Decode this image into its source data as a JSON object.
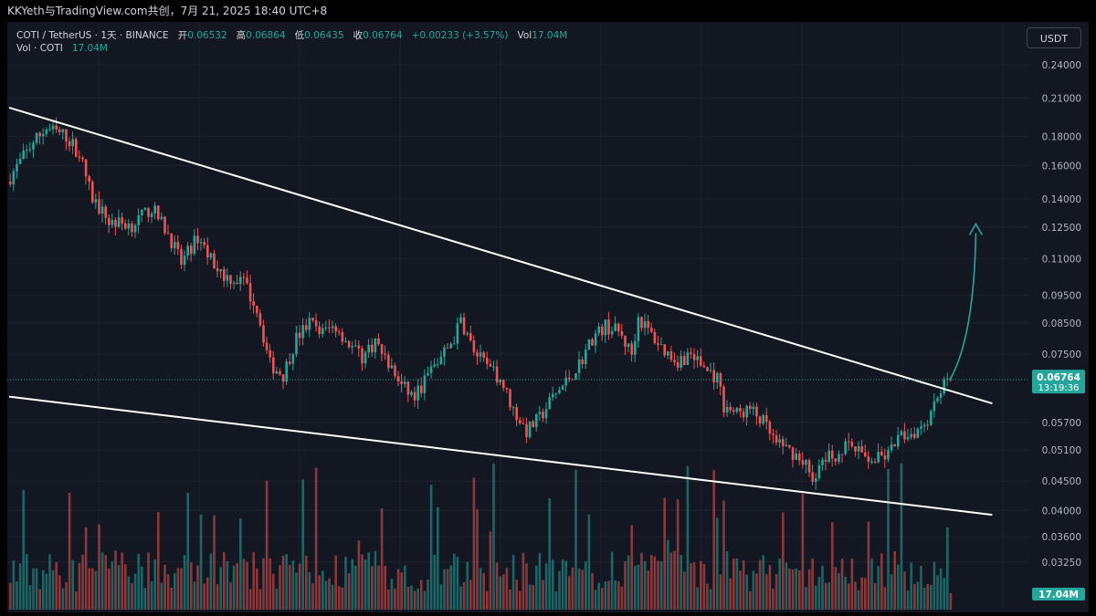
{
  "header": {
    "title": "KKYeth与TradingView.com共创，7月 21, 2025 18:40 UTC+8"
  },
  "legend": {
    "symbol": "COTI / TetherUS · 1天 · BINANCE",
    "open_label": "开",
    "open": "0.06532",
    "high_label": "高",
    "high": "0.06864",
    "low_label": "低",
    "low": "0.06435",
    "close_label": "收",
    "close": "0.06764",
    "change": "+0.00233 (+3.57%)",
    "vol_label": "Vol",
    "vol": "17.04M"
  },
  "volume_legend": {
    "label": "Vol · COTI",
    "value": "17.04M"
  },
  "currency_button": "USDT",
  "price_badge": {
    "price": "0.06764",
    "countdown": "13:19:36"
  },
  "volume_badge": "17.04M",
  "colors": {
    "background": "#131722",
    "up": "#26a69a",
    "down": "#ef5350",
    "trendline": "#ffffff",
    "arrow": "#26a69a"
  },
  "chart_data": {
    "type": "candlestick",
    "scale": "log",
    "interval": "1D",
    "y_ticks": [
      0.24,
      0.21,
      0.18,
      0.16,
      0.14,
      0.125,
      0.11,
      0.095,
      0.085,
      0.075,
      0.057,
      0.051,
      0.045,
      0.04,
      0.036,
      0.0325
    ],
    "y_tick_labels": [
      "0.24000",
      "0.21000",
      "0.18000",
      "0.16000",
      "0.14000",
      "0.12500",
      "0.11000",
      "0.09500",
      "0.08500",
      "0.07500",
      "0.05700",
      "0.05100",
      "0.04500",
      "0.04000",
      "0.03600",
      "0.03250"
    ],
    "last_price": 0.06764,
    "price_path_keyframes": [
      [
        0,
        0.15
      ],
      [
        8,
        0.176
      ],
      [
        12,
        0.186
      ],
      [
        18,
        0.18
      ],
      [
        22,
        0.168
      ],
      [
        26,
        0.14
      ],
      [
        31,
        0.128
      ],
      [
        38,
        0.126
      ],
      [
        44,
        0.135
      ],
      [
        49,
        0.122
      ],
      [
        53,
        0.108
      ],
      [
        58,
        0.12
      ],
      [
        62,
        0.11
      ],
      [
        66,
        0.103
      ],
      [
        72,
        0.1
      ],
      [
        76,
        0.09
      ],
      [
        80,
        0.072
      ],
      [
        84,
        0.069
      ],
      [
        88,
        0.08
      ],
      [
        92,
        0.085
      ],
      [
        96,
        0.082
      ],
      [
        100,
        0.084
      ],
      [
        104,
        0.078
      ],
      [
        108,
        0.074
      ],
      [
        112,
        0.079
      ],
      [
        116,
        0.072
      ],
      [
        120,
        0.066
      ],
      [
        124,
        0.063
      ],
      [
        128,
        0.069
      ],
      [
        132,
        0.074
      ],
      [
        136,
        0.08
      ],
      [
        138,
        0.086
      ],
      [
        142,
        0.076
      ],
      [
        146,
        0.071
      ],
      [
        150,
        0.068
      ],
      [
        154,
        0.06
      ],
      [
        158,
        0.055
      ],
      [
        162,
        0.058
      ],
      [
        166,
        0.063
      ],
      [
        170,
        0.067
      ],
      [
        174,
        0.072
      ],
      [
        178,
        0.08
      ],
      [
        182,
        0.084
      ],
      [
        186,
        0.082
      ],
      [
        190,
        0.075
      ],
      [
        192,
        0.087
      ],
      [
        196,
        0.081
      ],
      [
        200,
        0.076
      ],
      [
        204,
        0.073
      ],
      [
        208,
        0.075
      ],
      [
        212,
        0.071
      ],
      [
        216,
        0.068
      ],
      [
        218,
        0.061
      ],
      [
        222,
        0.059
      ],
      [
        226,
        0.06
      ],
      [
        230,
        0.057
      ],
      [
        234,
        0.052
      ],
      [
        238,
        0.051
      ],
      [
        242,
        0.049
      ],
      [
        246,
        0.045
      ],
      [
        248,
        0.049
      ],
      [
        252,
        0.05
      ],
      [
        256,
        0.052
      ],
      [
        260,
        0.05
      ],
      [
        264,
        0.049
      ],
      [
        268,
        0.05
      ],
      [
        272,
        0.054
      ],
      [
        276,
        0.055
      ],
      [
        280,
        0.058
      ],
      [
        283,
        0.064
      ],
      [
        286,
        0.06764
      ]
    ],
    "trendlines": [
      {
        "name": "upper",
        "from": [
          0,
          0.202
        ],
        "to": [
          299,
          0.0615
        ]
      },
      {
        "name": "lower",
        "from": [
          0,
          0.0632
        ],
        "to": [
          299,
          0.0393
        ]
      }
    ],
    "projection_arrow": {
      "from": [
        286,
        0.0675
      ],
      "to": [
        294,
        0.1265
      ]
    }
  }
}
